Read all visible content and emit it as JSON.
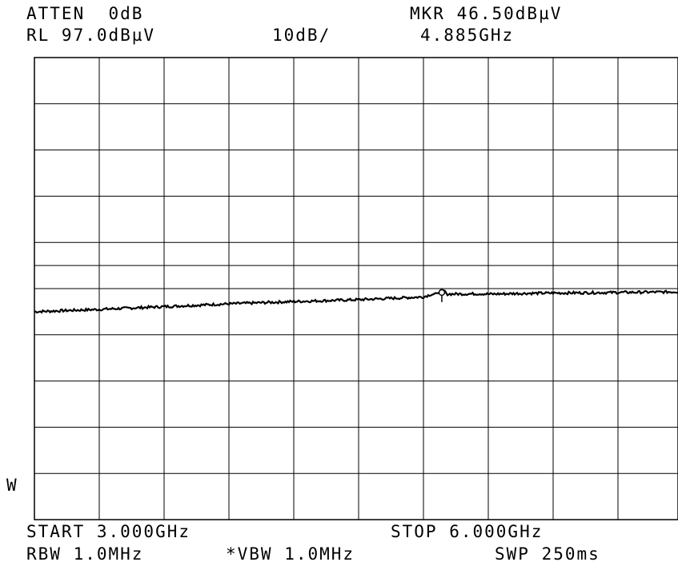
{
  "header": {
    "atten": "ATTEN  0dB",
    "ref_level": "RL 97.0dBµV",
    "scale": "10dB/",
    "marker_level": "MKR 46.50dBµV",
    "marker_freq": "4.885GHz"
  },
  "side_label": "W",
  "footer": {
    "start": "START 3.000GHz",
    "stop": "STOP 6.000GHz",
    "rbw": "RBW 1.0MHz",
    "vbw": "*VBW 1.0MHz",
    "sweep": "SWP 250ms"
  },
  "chart_data": {
    "type": "line",
    "xlabel": "",
    "ylabel": "",
    "xlim": [
      3.0,
      6.0
    ],
    "ylim": [
      -3.0,
      97.0
    ],
    "x_unit": "GHz",
    "y_unit": "dBµV",
    "grid": true,
    "reference_line_db": 52.0,
    "series": [
      {
        "x": [
          3.0,
          3.3,
          3.6,
          3.9,
          4.2,
          4.5,
          4.8,
          4.885,
          5.1,
          5.4,
          5.7,
          6.0
        ],
        "y": [
          42.0,
          42.5,
          43.1,
          43.7,
          44.2,
          44.6,
          45.2,
          46.5,
          45.8,
          46.1,
          46.6,
          47.0
        ]
      }
    ],
    "marker": {
      "x": 4.885,
      "y": 46.5
    }
  }
}
